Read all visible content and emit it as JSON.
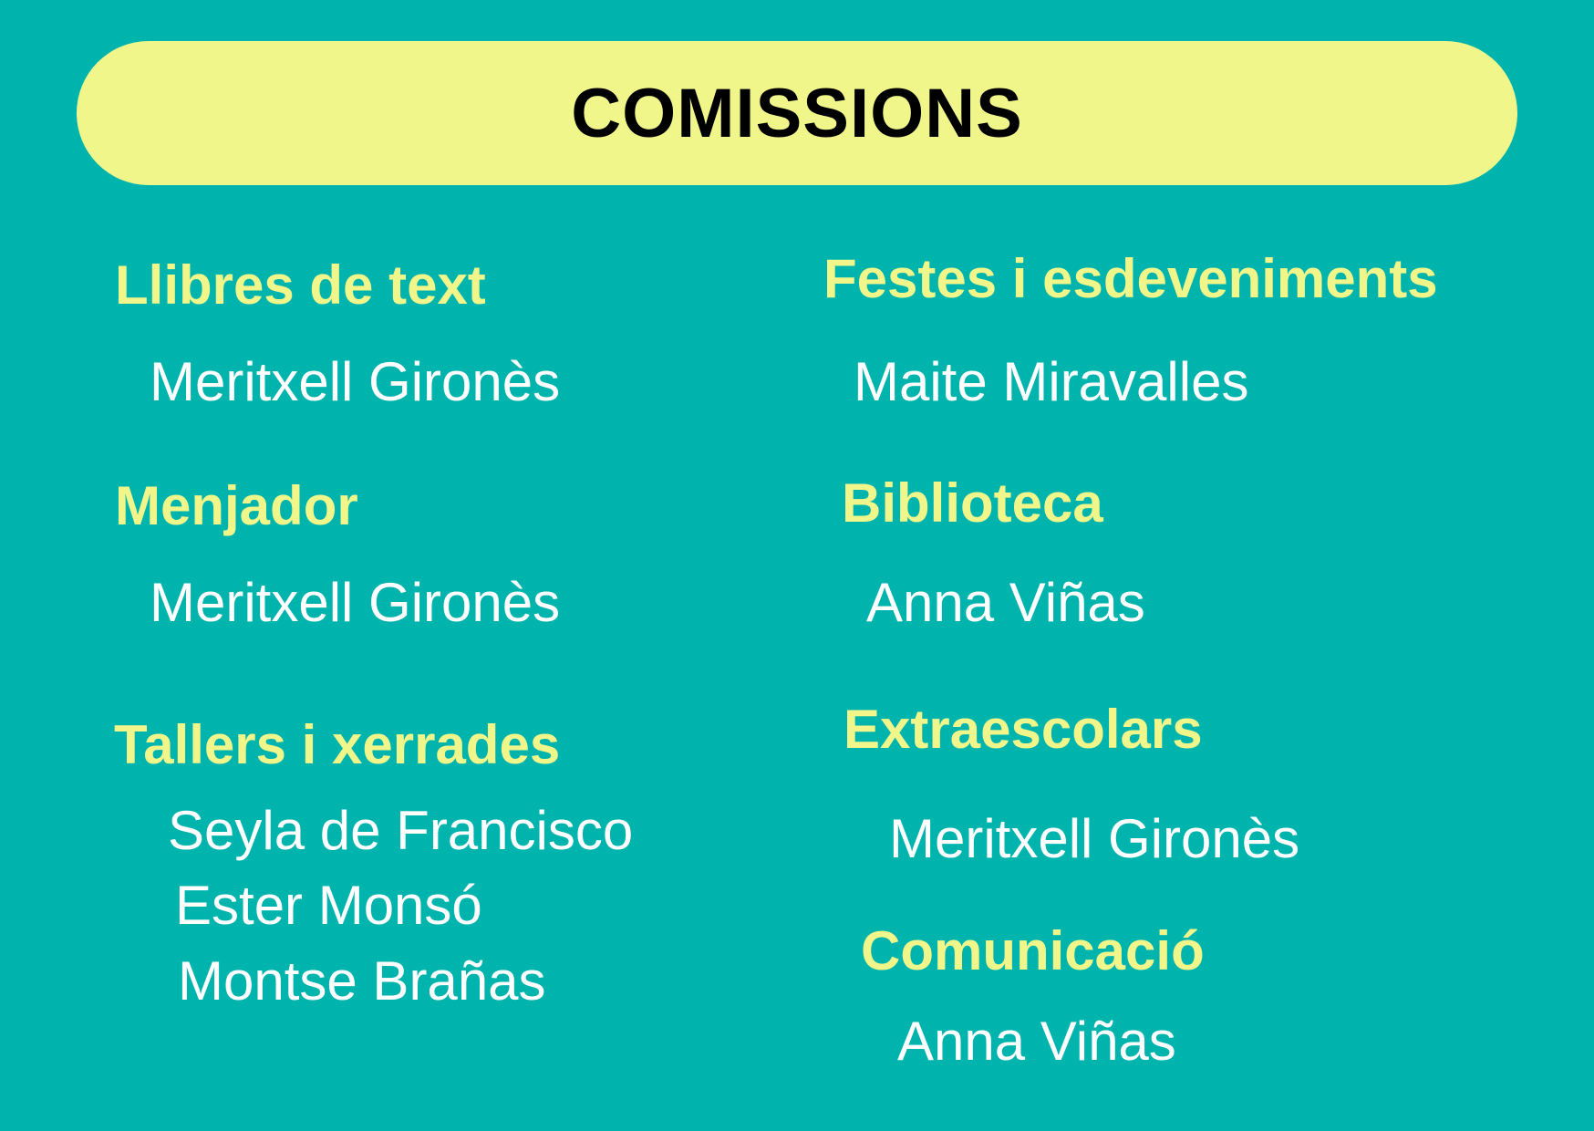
{
  "title": "COMISSIONS",
  "colors": {
    "background": "#00b4ae",
    "accent": "#f0f68a",
    "names": "#ffffff"
  },
  "left": [
    {
      "heading": "Llibres de text",
      "members": [
        "Meritxell Gironès"
      ]
    },
    {
      "heading": "Menjador",
      "members": [
        "Meritxell Gironès"
      ]
    },
    {
      "heading": "Tallers i xerrades",
      "members": [
        "Seyla de Francisco",
        "Ester Monsó",
        "Montse Brañas"
      ]
    }
  ],
  "right": [
    {
      "heading": "Festes i esdeveniments",
      "members": [
        "Maite Miravalles"
      ]
    },
    {
      "heading": "Biblioteca",
      "members": [
        "Anna Viñas"
      ]
    },
    {
      "heading": "Extraescolars",
      "members": [
        "Meritxell Gironès"
      ]
    },
    {
      "heading": "Comunicació",
      "members": [
        "Anna Viñas"
      ]
    }
  ]
}
